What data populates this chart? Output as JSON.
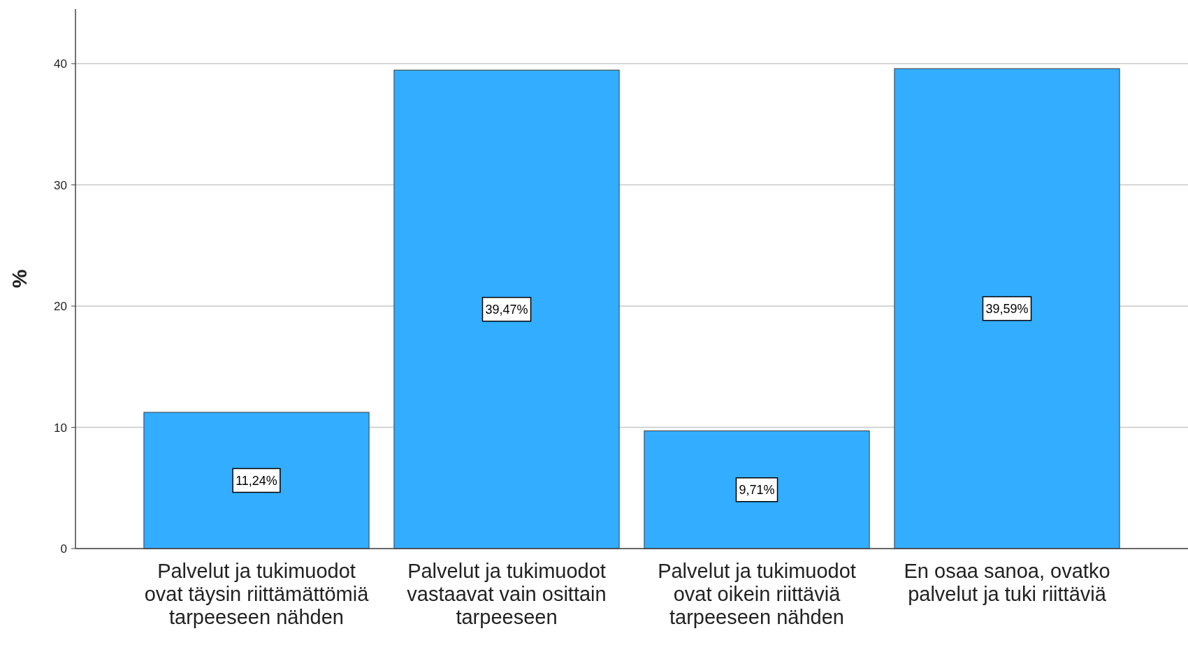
{
  "chart_data": {
    "type": "bar",
    "ylabel": "%",
    "categories": [
      "Palvelut ja tukimuodot ovat täysin riittämättömiä tarpeeseen nähden",
      "Palvelut ja tukimuodot vastaavat vain osittain tarpeeseen",
      "Palvelut ja tukimuodot ovat oikein riittäviä tarpeeseen nähden",
      "En osaa sanoa, ovatko palvelut ja tuki riittäviä"
    ],
    "values": [
      11.24,
      39.47,
      9.71,
      39.59
    ],
    "value_labels": [
      "11,24%",
      "39,47%",
      "9,71%",
      "39,59%"
    ],
    "color": "#33adff",
    "ylim": [
      0,
      44.5
    ],
    "yticks": [
      0,
      10,
      20,
      30,
      40
    ],
    "grid": "y"
  }
}
